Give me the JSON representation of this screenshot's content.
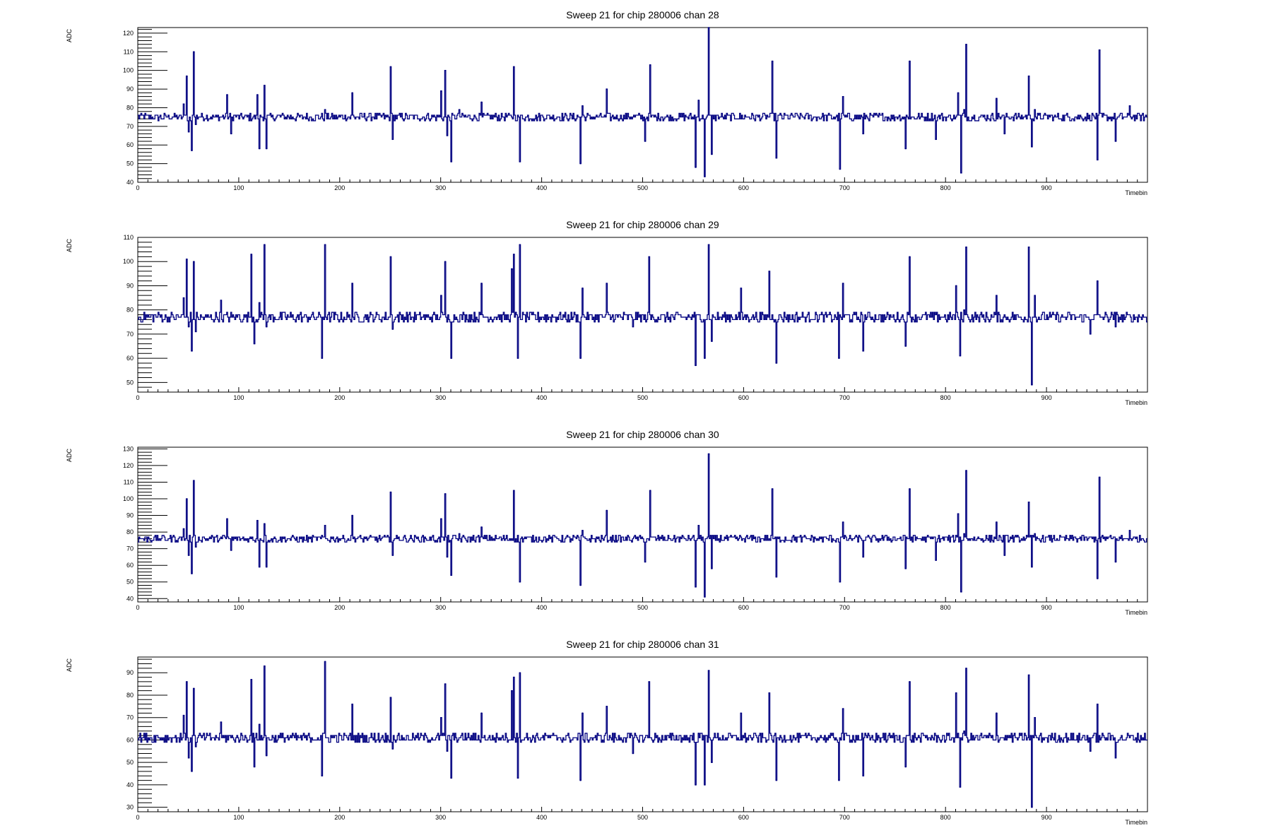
{
  "colors": {
    "trace": "#000080",
    "frame": "#000000",
    "background": "#ffffff"
  },
  "chart_data": [
    {
      "type": "line",
      "title": "Sweep 21 for chip 280006 chan 28",
      "xlabel": "Timebin",
      "ylabel": "ADC",
      "xlim": [
        0,
        1000
      ],
      "ylim": [
        40,
        123
      ],
      "xticks": [
        "0",
        "100",
        "200",
        "300",
        "400",
        "500",
        "600",
        "700",
        "800",
        "900"
      ],
      "yticks": [
        "40",
        "50",
        "60",
        "70",
        "80",
        "90",
        "100",
        "110",
        "120"
      ],
      "baseline": 75,
      "spikes": [
        [
          45,
          82
        ],
        [
          48,
          97
        ],
        [
          50,
          67
        ],
        [
          53,
          57
        ],
        [
          55,
          110
        ],
        [
          57,
          71
        ],
        [
          88,
          87
        ],
        [
          92,
          66
        ],
        [
          118,
          87
        ],
        [
          120,
          58
        ],
        [
          125,
          92
        ],
        [
          127,
          58
        ],
        [
          185,
          79
        ],
        [
          212,
          88
        ],
        [
          250,
          102
        ],
        [
          252,
          63
        ],
        [
          300,
          89
        ],
        [
          304,
          100
        ],
        [
          306,
          65
        ],
        [
          310,
          51
        ],
        [
          318,
          79
        ],
        [
          340,
          83
        ],
        [
          372,
          102
        ],
        [
          378,
          51
        ],
        [
          438,
          50
        ],
        [
          440,
          81
        ],
        [
          464,
          90
        ],
        [
          502,
          62
        ],
        [
          507,
          103
        ],
        [
          552,
          48
        ],
        [
          555,
          84
        ],
        [
          561,
          43
        ],
        [
          565,
          123
        ],
        [
          568,
          55
        ],
        [
          628,
          105
        ],
        [
          632,
          53
        ],
        [
          695,
          47
        ],
        [
          698,
          86
        ],
        [
          718,
          66
        ],
        [
          760,
          58
        ],
        [
          764,
          105
        ],
        [
          790,
          63
        ],
        [
          812,
          88
        ],
        [
          815,
          45
        ],
        [
          818,
          79
        ],
        [
          820,
          114
        ],
        [
          850,
          85
        ],
        [
          858,
          66
        ],
        [
          882,
          97
        ],
        [
          885,
          59
        ],
        [
          888,
          79
        ],
        [
          950,
          52
        ],
        [
          952,
          111
        ],
        [
          968,
          62
        ],
        [
          982,
          81
        ]
      ]
    },
    {
      "type": "line",
      "title": "Sweep 21 for chip 280006 chan 29",
      "xlabel": "Timebin",
      "ylabel": "ADC",
      "xlim": [
        0,
        1000
      ],
      "ylim": [
        46,
        110
      ],
      "xticks": [
        "0",
        "100",
        "200",
        "300",
        "400",
        "500",
        "600",
        "700",
        "800",
        "900"
      ],
      "yticks": [
        "50",
        "60",
        "70",
        "80",
        "90",
        "100",
        "110"
      ],
      "baseline": 77,
      "spikes": [
        [
          45,
          85
        ],
        [
          48,
          101
        ],
        [
          50,
          73
        ],
        [
          53,
          63
        ],
        [
          55,
          100
        ],
        [
          57,
          71
        ],
        [
          82,
          84
        ],
        [
          112,
          103
        ],
        [
          115,
          66
        ],
        [
          120,
          83
        ],
        [
          125,
          107
        ],
        [
          127,
          73
        ],
        [
          182,
          60
        ],
        [
          185,
          107
        ],
        [
          212,
          91
        ],
        [
          250,
          102
        ],
        [
          252,
          72
        ],
        [
          300,
          86
        ],
        [
          304,
          100
        ],
        [
          306,
          75
        ],
        [
          310,
          60
        ],
        [
          340,
          91
        ],
        [
          370,
          97
        ],
        [
          372,
          103
        ],
        [
          376,
          60
        ],
        [
          378,
          107
        ],
        [
          438,
          60
        ],
        [
          440,
          89
        ],
        [
          464,
          91
        ],
        [
          490,
          73
        ],
        [
          506,
          102
        ],
        [
          552,
          57
        ],
        [
          555,
          78
        ],
        [
          561,
          60
        ],
        [
          565,
          107
        ],
        [
          568,
          67
        ],
        [
          597,
          89
        ],
        [
          625,
          96
        ],
        [
          632,
          58
        ],
        [
          694,
          60
        ],
        [
          698,
          91
        ],
        [
          718,
          63
        ],
        [
          760,
          65
        ],
        [
          764,
          102
        ],
        [
          793,
          78
        ],
        [
          810,
          90
        ],
        [
          814,
          61
        ],
        [
          818,
          80
        ],
        [
          820,
          106
        ],
        [
          850,
          86
        ],
        [
          882,
          106
        ],
        [
          885,
          49
        ],
        [
          888,
          86
        ],
        [
          943,
          70
        ],
        [
          950,
          92
        ],
        [
          968,
          73
        ]
      ]
    },
    {
      "type": "line",
      "title": "Sweep 21 for chip 280006 chan 30",
      "xlabel": "Timebin",
      "ylabel": "ADC",
      "xlim": [
        0,
        1000
      ],
      "ylim": [
        38,
        131
      ],
      "xticks": [
        "0",
        "100",
        "200",
        "300",
        "400",
        "500",
        "600",
        "700",
        "800",
        "900"
      ],
      "yticks": [
        "40",
        "50",
        "60",
        "70",
        "80",
        "90",
        "100",
        "110",
        "120",
        "130"
      ],
      "baseline": 76,
      "spikes": [
        [
          45,
          82
        ],
        [
          48,
          100
        ],
        [
          50,
          66
        ],
        [
          53,
          55
        ],
        [
          55,
          111
        ],
        [
          57,
          71
        ],
        [
          88,
          88
        ],
        [
          92,
          69
        ],
        [
          118,
          87
        ],
        [
          120,
          59
        ],
        [
          125,
          85
        ],
        [
          127,
          59
        ],
        [
          185,
          84
        ],
        [
          212,
          90
        ],
        [
          250,
          104
        ],
        [
          252,
          66
        ],
        [
          300,
          88
        ],
        [
          304,
          103
        ],
        [
          306,
          65
        ],
        [
          310,
          54
        ],
        [
          318,
          79
        ],
        [
          340,
          83
        ],
        [
          372,
          105
        ],
        [
          378,
          50
        ],
        [
          438,
          48
        ],
        [
          440,
          81
        ],
        [
          464,
          93
        ],
        [
          502,
          62
        ],
        [
          507,
          105
        ],
        [
          552,
          47
        ],
        [
          555,
          84
        ],
        [
          561,
          41
        ],
        [
          565,
          127
        ],
        [
          568,
          58
        ],
        [
          628,
          106
        ],
        [
          632,
          53
        ],
        [
          695,
          50
        ],
        [
          698,
          86
        ],
        [
          718,
          65
        ],
        [
          760,
          58
        ],
        [
          764,
          106
        ],
        [
          790,
          63
        ],
        [
          812,
          91
        ],
        [
          815,
          44
        ],
        [
          818,
          79
        ],
        [
          820,
          117
        ],
        [
          850,
          86
        ],
        [
          858,
          66
        ],
        [
          882,
          98
        ],
        [
          885,
          59
        ],
        [
          888,
          79
        ],
        [
          950,
          52
        ],
        [
          952,
          113
        ],
        [
          968,
          62
        ],
        [
          982,
          81
        ]
      ]
    },
    {
      "type": "line",
      "title": "Sweep 21 for chip 280006 chan 31",
      "xlabel": "Timebin",
      "ylabel": "ADC",
      "xlim": [
        0,
        1000
      ],
      "ylim": [
        28,
        97
      ],
      "xticks": [
        "0",
        "100",
        "200",
        "300",
        "400",
        "500",
        "600",
        "700",
        "800",
        "900"
      ],
      "yticks": [
        "30",
        "40",
        "50",
        "60",
        "70",
        "80",
        "90"
      ],
      "baseline": 61,
      "spikes": [
        [
          45,
          71
        ],
        [
          48,
          86
        ],
        [
          50,
          52
        ],
        [
          53,
          46
        ],
        [
          55,
          83
        ],
        [
          57,
          57
        ],
        [
          82,
          68
        ],
        [
          112,
          87
        ],
        [
          115,
          48
        ],
        [
          120,
          67
        ],
        [
          125,
          93
        ],
        [
          127,
          53
        ],
        [
          182,
          44
        ],
        [
          185,
          95
        ],
        [
          212,
          76
        ],
        [
          250,
          79
        ],
        [
          252,
          56
        ],
        [
          300,
          70
        ],
        [
          304,
          85
        ],
        [
          306,
          55
        ],
        [
          310,
          43
        ],
        [
          340,
          72
        ],
        [
          370,
          82
        ],
        [
          372,
          88
        ],
        [
          376,
          43
        ],
        [
          378,
          90
        ],
        [
          438,
          42
        ],
        [
          440,
          72
        ],
        [
          464,
          75
        ],
        [
          490,
          54
        ],
        [
          506,
          86
        ],
        [
          552,
          40
        ],
        [
          555,
          63
        ],
        [
          561,
          40
        ],
        [
          565,
          91
        ],
        [
          568,
          50
        ],
        [
          597,
          72
        ],
        [
          625,
          81
        ],
        [
          632,
          42
        ],
        [
          694,
          42
        ],
        [
          698,
          74
        ],
        [
          718,
          44
        ],
        [
          760,
          48
        ],
        [
          764,
          86
        ],
        [
          793,
          61
        ],
        [
          810,
          81
        ],
        [
          814,
          39
        ],
        [
          818,
          64
        ],
        [
          820,
          92
        ],
        [
          850,
          72
        ],
        [
          882,
          89
        ],
        [
          885,
          30
        ],
        [
          888,
          70
        ],
        [
          943,
          55
        ],
        [
          950,
          76
        ],
        [
          968,
          52
        ]
      ]
    }
  ]
}
